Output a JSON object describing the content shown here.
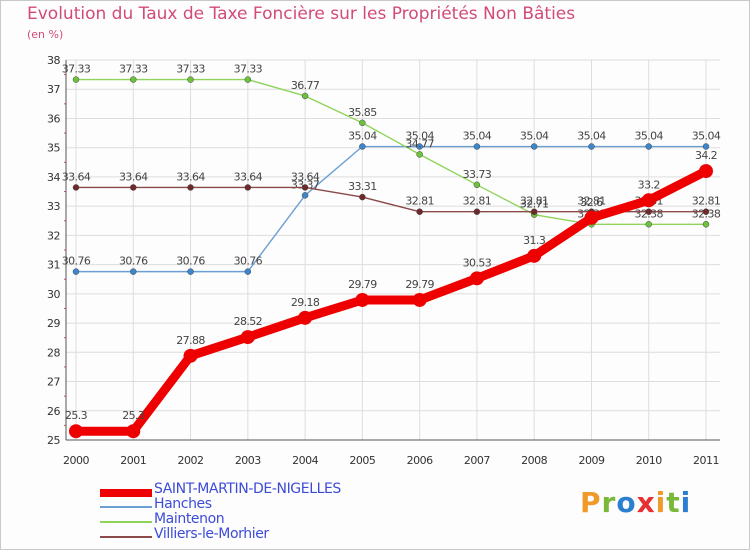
{
  "title": "Evolution du Taux de Taxe Foncière sur les Propriétés Non Bâties",
  "unit": "(en %)",
  "logo": "Proxiti",
  "chart_data": {
    "type": "line",
    "categories": [
      "2000",
      "2001",
      "2002",
      "2003",
      "2004",
      "2005",
      "2006",
      "2007",
      "2008",
      "2009",
      "2010",
      "2011"
    ],
    "ylim": [
      25,
      38
    ],
    "yticks": [
      25,
      26,
      27,
      28,
      29,
      30,
      31,
      32,
      33,
      34,
      35,
      36,
      37,
      38
    ],
    "grid": true,
    "legend_position": "bottom-left",
    "series": [
      {
        "name": "Hanches",
        "color": "#6b9fd4",
        "marker": "#3d86cc",
        "values": [
          30.76,
          30.76,
          30.76,
          30.76,
          33.37,
          35.04,
          35.04,
          35.04,
          35.04,
          35.04,
          35.04,
          35.04
        ],
        "labels": [
          "30.76",
          "30.76",
          "30.76",
          "30.76",
          "33.37",
          "35.04",
          "35.04",
          "35.04",
          "35.04",
          "35.04",
          "35.04",
          "35.04"
        ]
      },
      {
        "name": "Maintenon",
        "color": "#8fd35a",
        "marker": "#6cc23c",
        "values": [
          37.33,
          37.33,
          37.33,
          37.33,
          36.77,
          35.85,
          34.77,
          33.73,
          32.71,
          32.38,
          32.38,
          32.38
        ],
        "labels": [
          "37.33",
          "37.33",
          "37.33",
          "37.33",
          "36.77",
          "35.85",
          "34.77",
          "33.73",
          "32.71",
          "32.38",
          "32.38",
          "32.38"
        ]
      },
      {
        "name": "Villiers-le-Morhier",
        "color": "#8a4a4a",
        "marker": "#6e2a2a",
        "values": [
          33.64,
          33.64,
          33.64,
          33.64,
          33.64,
          33.31,
          32.81,
          32.81,
          32.81,
          32.81,
          32.81,
          32.81
        ],
        "labels": [
          "33.64",
          "33.64",
          "33.64",
          "33.64",
          "33.64",
          "33.31",
          "32.81",
          "32.81",
          "32.81",
          "32.81",
          "32.81",
          "32.81"
        ]
      },
      {
        "name": "SAINT-MARTIN-DE-NIGELLES",
        "color": "#ee0000",
        "marker": "#ee0000",
        "values": [
          25.3,
          25.3,
          27.88,
          28.52,
          29.18,
          29.79,
          29.79,
          30.53,
          31.3,
          32.6,
          33.2,
          34.2
        ],
        "labels": [
          "25.3",
          "25.3",
          "27.88",
          "28.52",
          "29.18",
          "29.79",
          "29.79",
          "30.53",
          "31.3",
          "32.6",
          "33.2",
          "34.2"
        ]
      }
    ]
  },
  "legend": [
    {
      "name": "SAINT-MARTIN-DE-NIGELLES",
      "color": "#ee0000"
    },
    {
      "name": "Hanches",
      "color": "#6b9fd4"
    },
    {
      "name": "Maintenon",
      "color": "#8fd35a"
    },
    {
      "name": "Villiers-le-Morhier",
      "color": "#8a4a4a"
    }
  ]
}
